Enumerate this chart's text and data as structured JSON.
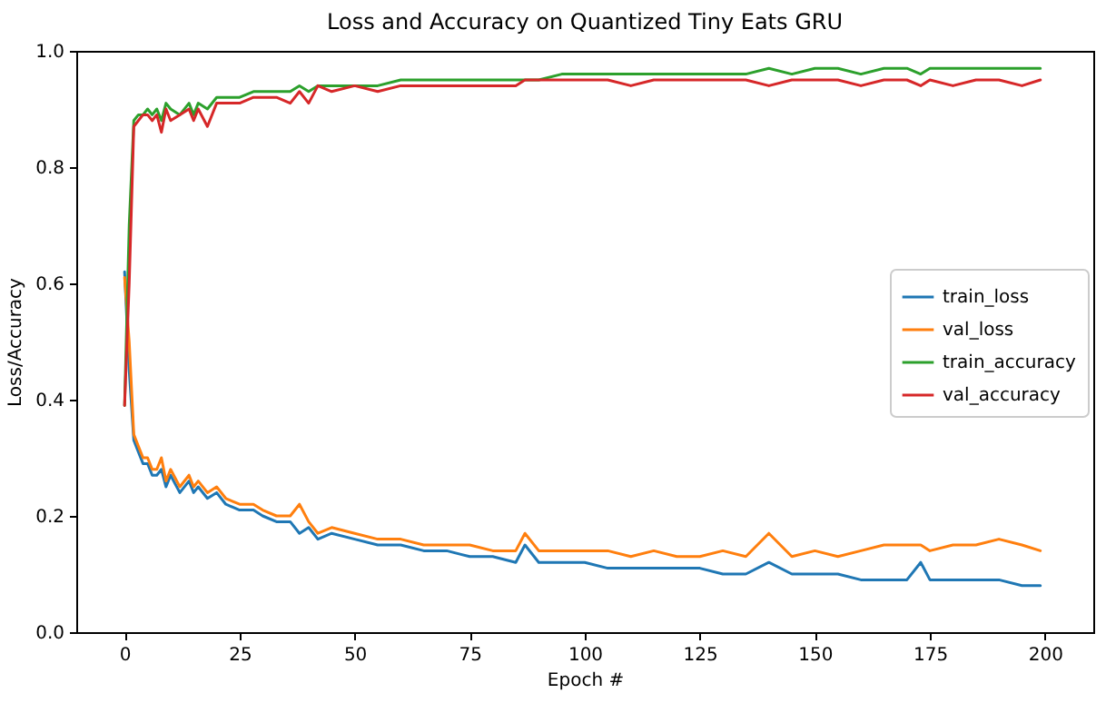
{
  "chart_data": {
    "type": "line",
    "title": "Loss and Accuracy on Quantized Tiny Eats GRU",
    "xlabel": "Epoch #",
    "ylabel": "Loss/Accuracy",
    "x": [
      0,
      1,
      2,
      3,
      4,
      5,
      6,
      7,
      8,
      9,
      10,
      12,
      14,
      15,
      16,
      18,
      20,
      22,
      25,
      28,
      30,
      33,
      36,
      38,
      40,
      42,
      45,
      50,
      55,
      60,
      65,
      70,
      75,
      80,
      85,
      87,
      90,
      95,
      100,
      105,
      110,
      115,
      120,
      125,
      130,
      135,
      140,
      145,
      150,
      155,
      160,
      165,
      170,
      173,
      175,
      180,
      185,
      190,
      195,
      199
    ],
    "series": [
      {
        "name": "train_loss",
        "color": "#1f77b4",
        "values": [
          0.62,
          0.45,
          0.33,
          0.31,
          0.29,
          0.29,
          0.27,
          0.27,
          0.28,
          0.25,
          0.27,
          0.24,
          0.26,
          0.24,
          0.25,
          0.23,
          0.24,
          0.22,
          0.21,
          0.21,
          0.2,
          0.19,
          0.19,
          0.17,
          0.18,
          0.16,
          0.17,
          0.16,
          0.15,
          0.15,
          0.14,
          0.14,
          0.13,
          0.13,
          0.12,
          0.15,
          0.12,
          0.12,
          0.12,
          0.11,
          0.11,
          0.11,
          0.11,
          0.11,
          0.1,
          0.1,
          0.12,
          0.1,
          0.1,
          0.1,
          0.09,
          0.09,
          0.09,
          0.12,
          0.09,
          0.09,
          0.09,
          0.09,
          0.08,
          0.08
        ]
      },
      {
        "name": "val_loss",
        "color": "#ff7f0e",
        "values": [
          0.61,
          0.5,
          0.34,
          0.32,
          0.3,
          0.3,
          0.28,
          0.28,
          0.3,
          0.26,
          0.28,
          0.25,
          0.27,
          0.25,
          0.26,
          0.24,
          0.25,
          0.23,
          0.22,
          0.22,
          0.21,
          0.2,
          0.2,
          0.22,
          0.19,
          0.17,
          0.18,
          0.17,
          0.16,
          0.16,
          0.15,
          0.15,
          0.15,
          0.14,
          0.14,
          0.17,
          0.14,
          0.14,
          0.14,
          0.14,
          0.13,
          0.14,
          0.13,
          0.13,
          0.14,
          0.13,
          0.17,
          0.13,
          0.14,
          0.13,
          0.14,
          0.15,
          0.15,
          0.15,
          0.14,
          0.15,
          0.15,
          0.16,
          0.15,
          0.14
        ]
      },
      {
        "name": "train_accuracy",
        "color": "#2ca02c",
        "values": [
          0.39,
          0.7,
          0.88,
          0.89,
          0.89,
          0.9,
          0.89,
          0.9,
          0.88,
          0.91,
          0.9,
          0.89,
          0.91,
          0.89,
          0.91,
          0.9,
          0.92,
          0.92,
          0.92,
          0.93,
          0.93,
          0.93,
          0.93,
          0.94,
          0.93,
          0.94,
          0.94,
          0.94,
          0.94,
          0.95,
          0.95,
          0.95,
          0.95,
          0.95,
          0.95,
          0.95,
          0.95,
          0.96,
          0.96,
          0.96,
          0.96,
          0.96,
          0.96,
          0.96,
          0.96,
          0.96,
          0.97,
          0.96,
          0.97,
          0.97,
          0.96,
          0.97,
          0.97,
          0.96,
          0.97,
          0.97,
          0.97,
          0.97,
          0.97,
          0.97
        ]
      },
      {
        "name": "val_accuracy",
        "color": "#d62728",
        "values": [
          0.39,
          0.6,
          0.87,
          0.88,
          0.89,
          0.89,
          0.88,
          0.89,
          0.86,
          0.9,
          0.88,
          0.89,
          0.9,
          0.88,
          0.9,
          0.87,
          0.91,
          0.91,
          0.91,
          0.92,
          0.92,
          0.92,
          0.91,
          0.93,
          0.91,
          0.94,
          0.93,
          0.94,
          0.93,
          0.94,
          0.94,
          0.94,
          0.94,
          0.94,
          0.94,
          0.95,
          0.95,
          0.95,
          0.95,
          0.95,
          0.94,
          0.95,
          0.95,
          0.95,
          0.95,
          0.95,
          0.94,
          0.95,
          0.95,
          0.95,
          0.94,
          0.95,
          0.95,
          0.94,
          0.95,
          0.94,
          0.95,
          0.95,
          0.94,
          0.95
        ]
      }
    ],
    "xlim": [
      -10.5,
      210.5
    ],
    "xticks": [
      0,
      25,
      50,
      75,
      100,
      125,
      150,
      175,
      200
    ],
    "ylim": [
      0,
      1
    ],
    "yticks": [
      {
        "value": 0,
        "label": "0.0"
      },
      {
        "value": 0.2,
        "label": "0.2"
      },
      {
        "value": 0.4,
        "label": "0.4"
      },
      {
        "value": 0.6,
        "label": "0.6"
      },
      {
        "value": 0.8,
        "label": "0.8"
      },
      {
        "value": 1,
        "label": "1.0"
      }
    ],
    "legend": "right",
    "grid": false,
    "marker": "none",
    "line_style": "solid"
  }
}
